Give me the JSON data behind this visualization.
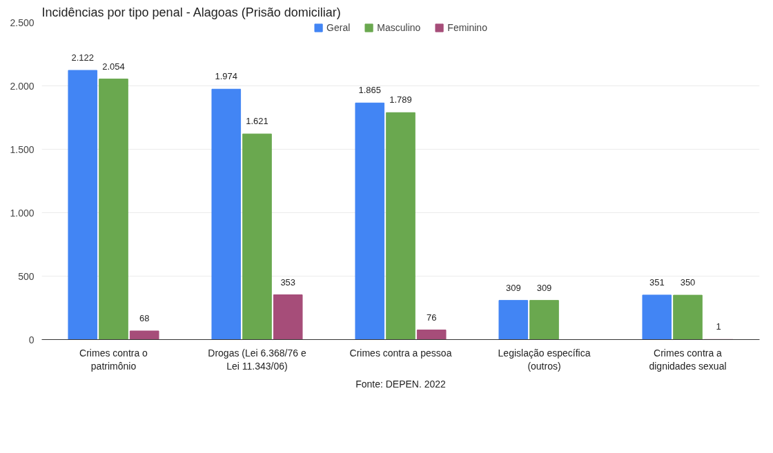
{
  "chart_data": {
    "type": "bar",
    "title": "Incidências por tipo penal - Alagoas (Prisão domiciliar)",
    "categories": [
      "Crimes contra o patrimônio",
      "Drogas (Lei 6.368/76 e Lei 11.343/06)",
      "Crimes contra a pessoa",
      "Legislação específica (outros)",
      "Crimes contra a dignidades sexual"
    ],
    "series": [
      {
        "name": "Geral",
        "color": "#4285f4",
        "values": [
          2122,
          1974,
          1865,
          309,
          351
        ],
        "value_labels": [
          "2.122",
          "1.974",
          "1.865",
          "309",
          "351"
        ]
      },
      {
        "name": "Masculino",
        "color": "#6aa84f",
        "values": [
          2054,
          1621,
          1789,
          309,
          350
        ],
        "value_labels": [
          "2.054",
          "1.621",
          "1.789",
          "309",
          "350"
        ]
      },
      {
        "name": "Feminino",
        "color": "#a64d79",
        "values": [
          68,
          353,
          76,
          null,
          1
        ],
        "value_labels": [
          "68",
          "353",
          "76",
          null,
          "1"
        ]
      }
    ],
    "ylim": [
      0,
      2500
    ],
    "yticks": [
      0,
      500,
      {
        "value": 1000,
        "label": "1.000"
      },
      {
        "value": 1500,
        "label": "1.500"
      },
      {
        "value": 2000,
        "label": "2.000"
      },
      {
        "value": 2500,
        "label": "2.500"
      }
    ],
    "grid": "y",
    "legend": "top",
    "annotations": [
      "Fonte: DEPEN. 2022"
    ]
  }
}
